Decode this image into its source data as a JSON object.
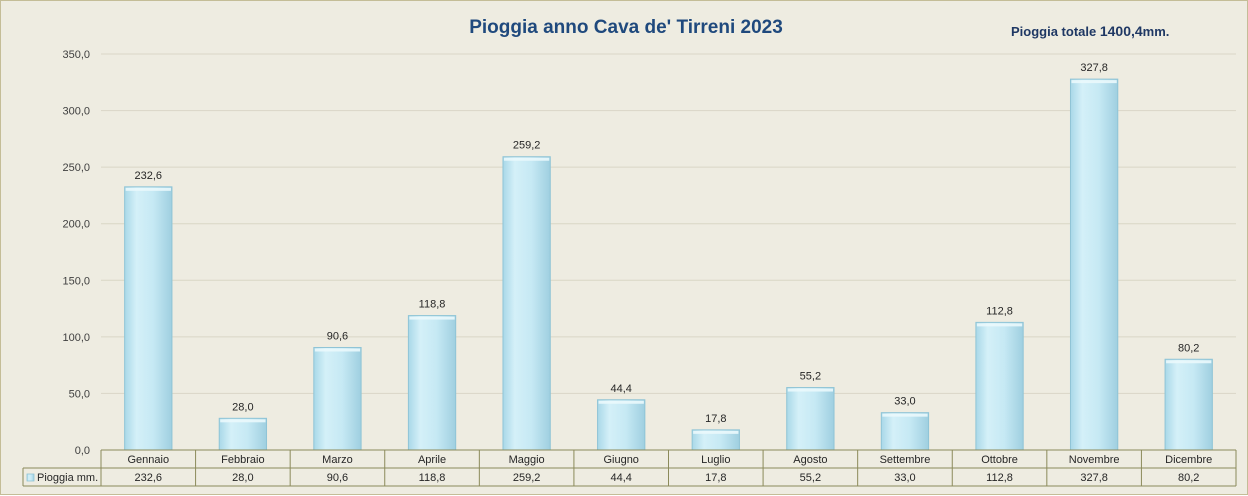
{
  "chart_data": {
    "type": "bar",
    "title": "Pioggia anno Cava de' Tirreni 2023",
    "annotation": {
      "prefix": "Pioggia totale ",
      "value": "1400,4",
      "suffix": "mm."
    },
    "categories": [
      "Gennaio",
      "Febbraio",
      "Marzo",
      "Aprile",
      "Maggio",
      "Giugno",
      "Luglio",
      "Agosto",
      "Settembre",
      "Ottobre",
      "Novembre",
      "Dicembre"
    ],
    "series": [
      {
        "name": "Pioggia mm.",
        "values": [
          232.6,
          28.0,
          90.6,
          118.8,
          259.2,
          44.4,
          17.8,
          55.2,
          33.0,
          112.8,
          327.8,
          80.2
        ],
        "labels": [
          "232,6",
          "28,0",
          "90,6",
          "118,8",
          "259,2",
          "44,4",
          "17,8",
          "55,2",
          "33,0",
          "112,8",
          "327,8",
          "80,2"
        ]
      }
    ],
    "ylim": [
      0,
      350
    ],
    "yticks": [
      "0,0",
      "50,0",
      "100,0",
      "150,0",
      "200,0",
      "250,0",
      "300,0",
      "350,0"
    ],
    "grid": true,
    "legend": "data-table",
    "colors": {
      "bar": "#c6e9f4",
      "bar_edge": "#8fc4d6",
      "background": "#eeece1",
      "grid": "#d9d6c6",
      "table_border": "#8b8a5a",
      "title": "#1f497d"
    }
  }
}
